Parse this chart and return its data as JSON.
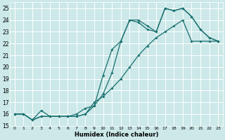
{
  "xlabel": "Humidex (Indice chaleur)",
  "bg_color": "#cce8e8",
  "grid_color": "#ffffff",
  "line_color": "#1a7070",
  "xlim": [
    -0.5,
    23.5
  ],
  "ylim": [
    15,
    25.5
  ],
  "xticks": [
    0,
    1,
    2,
    3,
    4,
    5,
    6,
    7,
    8,
    9,
    10,
    11,
    12,
    13,
    14,
    15,
    16,
    17,
    18,
    19,
    20,
    21,
    22,
    23
  ],
  "yticks": [
    15,
    16,
    17,
    18,
    19,
    20,
    21,
    22,
    23,
    24,
    25
  ],
  "line1_x": [
    0,
    1,
    2,
    3,
    4,
    5,
    6,
    7,
    8,
    9,
    10,
    11,
    12,
    13,
    14,
    15,
    16,
    17,
    18,
    19,
    20,
    21,
    22,
    23
  ],
  "line1_y": [
    16.0,
    16.0,
    15.5,
    15.8,
    15.8,
    15.8,
    15.8,
    15.8,
    16.0,
    17.0,
    17.5,
    18.2,
    19.0,
    20.0,
    21.0,
    21.8,
    22.5,
    23.0,
    23.5,
    24.0,
    22.2,
    22.2,
    22.2,
    22.2
  ],
  "line2_x": [
    0,
    1,
    2,
    3,
    4,
    5,
    6,
    7,
    8,
    9,
    10,
    11,
    12,
    13,
    14,
    15,
    16,
    17,
    18,
    19,
    20,
    21,
    22,
    23
  ],
  "line2_y": [
    16.0,
    16.0,
    15.5,
    15.8,
    15.8,
    15.8,
    15.8,
    15.8,
    16.0,
    16.7,
    19.3,
    21.5,
    22.2,
    24.0,
    24.0,
    23.5,
    23.0,
    25.0,
    24.8,
    25.0,
    24.3,
    23.2,
    22.5,
    22.2
  ],
  "line3_x": [
    0,
    1,
    2,
    3,
    4,
    5,
    6,
    7,
    8,
    9,
    10,
    11,
    12,
    13,
    14,
    15,
    16,
    17,
    18,
    19,
    20,
    21,
    22,
    23
  ],
  "line3_y": [
    16.0,
    16.0,
    15.5,
    16.3,
    15.8,
    15.8,
    15.8,
    16.0,
    16.5,
    16.7,
    17.7,
    19.5,
    22.2,
    24.0,
    23.8,
    23.2,
    23.0,
    25.0,
    24.8,
    25.0,
    24.3,
    23.2,
    22.5,
    22.2
  ]
}
